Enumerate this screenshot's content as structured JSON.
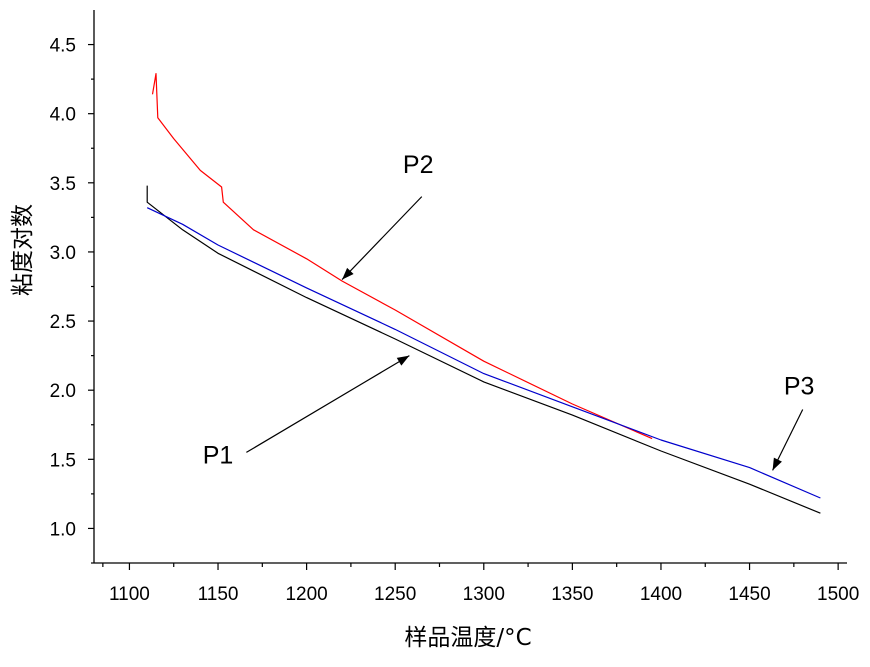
{
  "chart_data": {
    "type": "line",
    "title": "",
    "xlabel": "样品温度/°C",
    "ylabel": "粘度对数",
    "xlim": [
      1080,
      1505
    ],
    "ylim": [
      0.75,
      4.75
    ],
    "xticks": [
      1100,
      1150,
      1200,
      1250,
      1300,
      1350,
      1400,
      1450,
      1500
    ],
    "xtick_labels": [
      "1100",
      "1150",
      "1200",
      "1250",
      "1300",
      "1350",
      "1400",
      "1450",
      "1500"
    ],
    "yticks": [
      1.0,
      1.5,
      2.0,
      2.5,
      3.0,
      3.5,
      4.0,
      4.5
    ],
    "ytick_labels": [
      "1.0",
      "1.5",
      "2.0",
      "2.5",
      "3.0",
      "3.5",
      "4.0",
      "4.5"
    ],
    "series": [
      {
        "name": "P1",
        "color": "#000000",
        "points": [
          [
            1110,
            3.48
          ],
          [
            1110,
            3.36
          ],
          [
            1130,
            3.16
          ],
          [
            1150,
            2.99
          ],
          [
            1200,
            2.67
          ],
          [
            1250,
            2.37
          ],
          [
            1300,
            2.06
          ],
          [
            1350,
            1.82
          ],
          [
            1400,
            1.56
          ],
          [
            1450,
            1.32
          ],
          [
            1490,
            1.11
          ]
        ]
      },
      {
        "name": "P2",
        "color": "#ff0000",
        "points": [
          [
            1113,
            4.14
          ],
          [
            1115,
            4.29
          ],
          [
            1116,
            3.97
          ],
          [
            1125,
            3.82
          ],
          [
            1140,
            3.59
          ],
          [
            1152,
            3.47
          ],
          [
            1153,
            3.36
          ],
          [
            1170,
            3.16
          ],
          [
            1200,
            2.95
          ],
          [
            1220,
            2.79
          ],
          [
            1250,
            2.58
          ],
          [
            1300,
            2.21
          ],
          [
            1350,
            1.9
          ],
          [
            1395,
            1.65
          ]
        ]
      },
      {
        "name": "P3",
        "color": "#0000cc",
        "points": [
          [
            1110,
            3.32
          ],
          [
            1130,
            3.2
          ],
          [
            1150,
            3.05
          ],
          [
            1200,
            2.74
          ],
          [
            1250,
            2.44
          ],
          [
            1300,
            2.12
          ],
          [
            1350,
            1.88
          ],
          [
            1400,
            1.64
          ],
          [
            1450,
            1.44
          ],
          [
            1490,
            1.22
          ]
        ]
      }
    ],
    "annotations": [
      {
        "label": "P1",
        "text_at": [
          1150,
          1.47
        ],
        "arrow_from": [
          1166,
          1.55
        ],
        "arrow_to": [
          1258,
          2.25
        ]
      },
      {
        "label": "P2",
        "text_at": [
          1263,
          3.57
        ],
        "arrow_from": [
          1265,
          3.4
        ],
        "arrow_to": [
          1220,
          2.8
        ]
      },
      {
        "label": "P3",
        "text_at": [
          1478,
          1.97
        ],
        "arrow_from": [
          1480,
          1.86
        ],
        "arrow_to": [
          1463,
          1.42
        ]
      }
    ]
  }
}
